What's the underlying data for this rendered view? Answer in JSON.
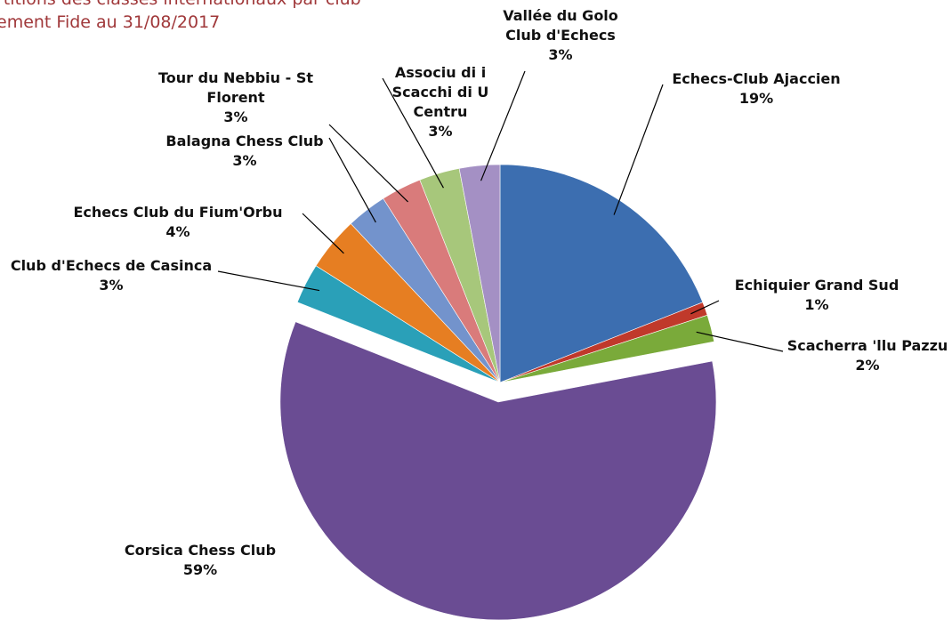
{
  "chart_data": {
    "type": "pie",
    "title": "rtitions des classés internationaux par club",
    "subtitle": "ement Fide au 31/08/2017",
    "categories": [
      "Echecs-Club Ajaccien",
      "Echiquier Grand Sud",
      "Scacherra 'llu Pazzu",
      "Corsica Chess Club",
      "Club d'Echecs de Casinca",
      "Echecs Club du Fium'Orbu",
      "Balagna Chess Club",
      "Tour du Nebbiu - St Florent",
      "Associu di i Scacchi di U Centru",
      "Vallée du Golo Club d'Echecs"
    ],
    "values": [
      19,
      1,
      2,
      59,
      3,
      4,
      3,
      3,
      3,
      3
    ],
    "value_labels": [
      "19%",
      "1%",
      "2%",
      "59%",
      "3%",
      "4%",
      "3%",
      "3%",
      "3%",
      "3%"
    ],
    "colors": [
      "#3c6eb0",
      "#c0392b",
      "#7aaa3a",
      "#6a4c93",
      "#2aa0b8",
      "#e67e22",
      "#7393cc",
      "#d97b7b",
      "#a7c77b",
      "#a490c4"
    ]
  }
}
